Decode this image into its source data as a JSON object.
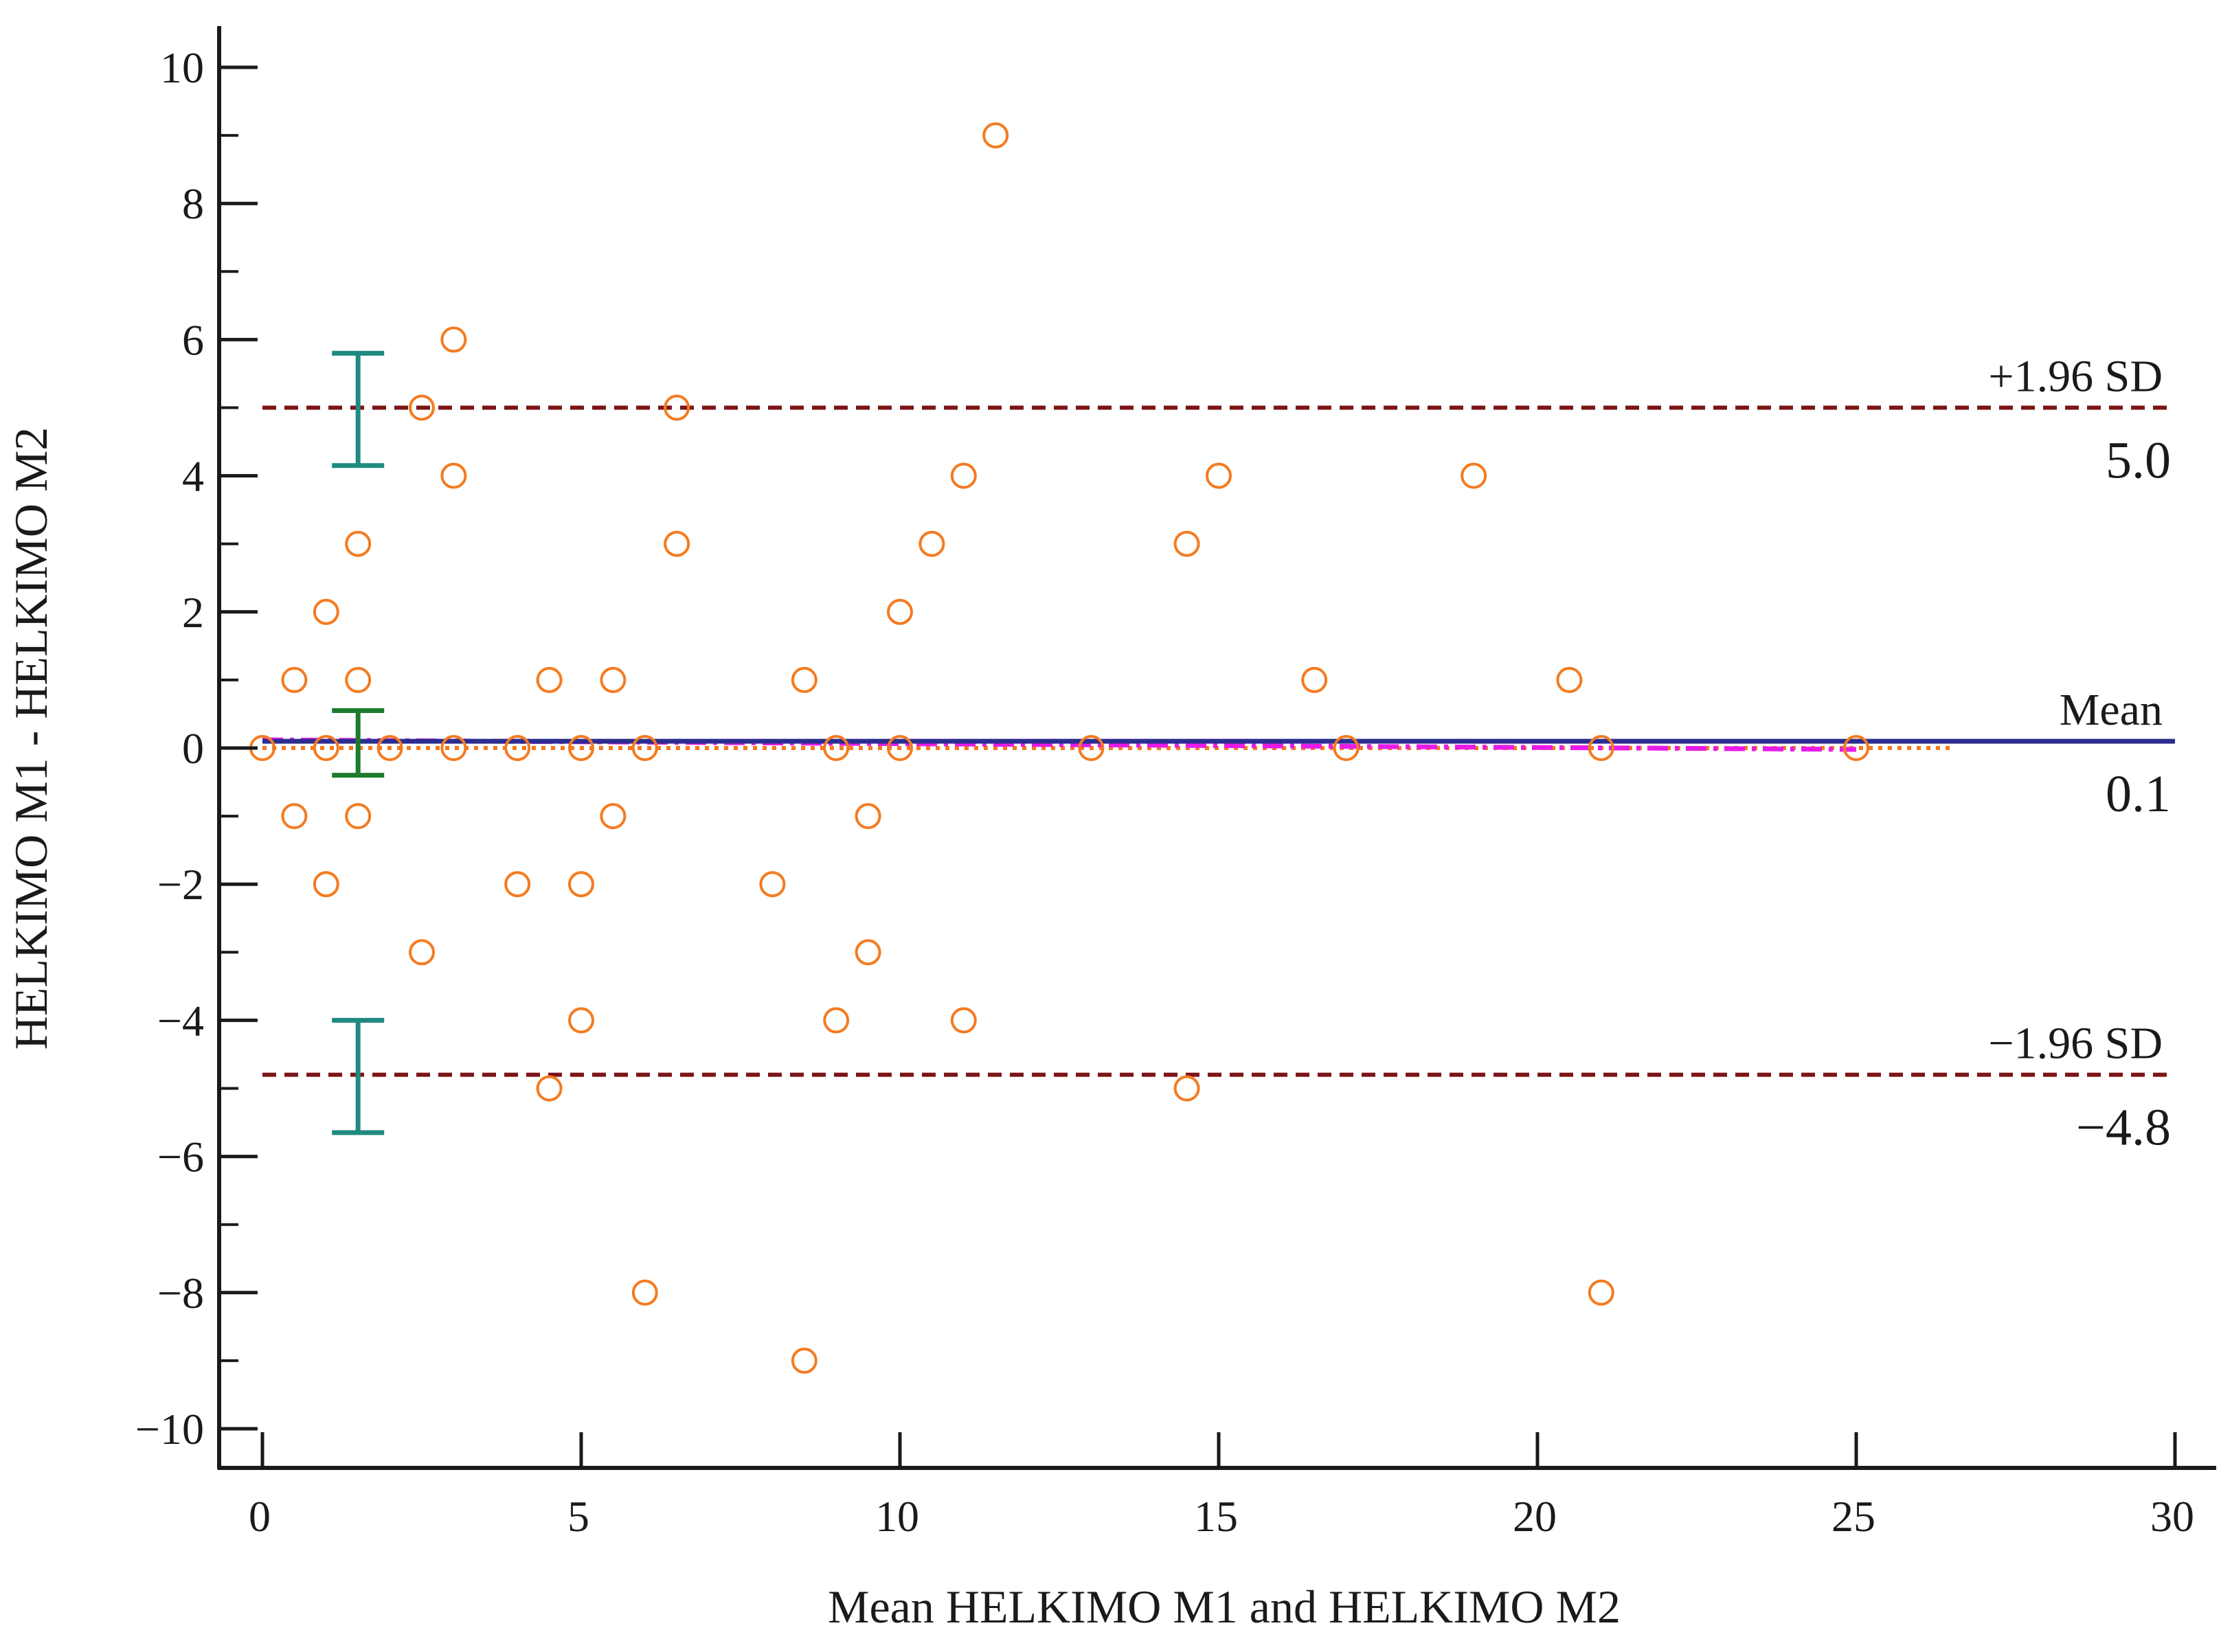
{
  "chart_data": {
    "type": "scatter",
    "subtype": "bland-altman",
    "xlabel": "Mean HELKIMO M1 and HELKIMO M2",
    "ylabel": "HELKIMO M1 - HELKIMO M2",
    "xlim": [
      0,
      30
    ],
    "ylim": [
      -10,
      10
    ],
    "x_ticks": [
      0,
      5,
      10,
      15,
      20,
      25,
      30
    ],
    "x_tick_labels": [
      "0",
      "5",
      "10",
      "15",
      "20",
      "25",
      "30"
    ],
    "y_ticks": [
      -10,
      -8,
      -6,
      -4,
      -2,
      0,
      2,
      4,
      6,
      8,
      10
    ],
    "y_tick_labels": [
      "−10",
      "−8",
      "−6",
      "−4",
      "−2",
      "0",
      "2",
      "4",
      "6",
      "8",
      "10"
    ],
    "y_minor_ticks": [
      -9,
      -7,
      -5,
      -3,
      -1,
      1,
      3,
      5,
      7,
      9
    ],
    "grid": false,
    "series": [
      {
        "name": "Differences",
        "marker": "open-circle",
        "color": "#F47B20",
        "points": [
          {
            "x": 0,
            "y": 0
          },
          {
            "x": 0.5,
            "y": 1
          },
          {
            "x": 0.5,
            "y": -1
          },
          {
            "x": 1,
            "y": 2
          },
          {
            "x": 1,
            "y": 0
          },
          {
            "x": 1,
            "y": -2
          },
          {
            "x": 1.5,
            "y": 3
          },
          {
            "x": 1.5,
            "y": 1
          },
          {
            "x": 1.5,
            "y": -1
          },
          {
            "x": 2,
            "y": 0
          },
          {
            "x": 2.5,
            "y": 5
          },
          {
            "x": 2.5,
            "y": -3
          },
          {
            "x": 3,
            "y": 6
          },
          {
            "x": 3,
            "y": 4
          },
          {
            "x": 3,
            "y": 0
          },
          {
            "x": 4,
            "y": 0
          },
          {
            "x": 4,
            "y": -2
          },
          {
            "x": 4.5,
            "y": 1
          },
          {
            "x": 4.5,
            "y": -5
          },
          {
            "x": 5,
            "y": 0
          },
          {
            "x": 5,
            "y": -2
          },
          {
            "x": 5,
            "y": -4
          },
          {
            "x": 5.5,
            "y": 1
          },
          {
            "x": 5.5,
            "y": -1
          },
          {
            "x": 6,
            "y": 0
          },
          {
            "x": 6,
            "y": -8
          },
          {
            "x": 6.5,
            "y": 5
          },
          {
            "x": 6.5,
            "y": 3
          },
          {
            "x": 8,
            "y": -2
          },
          {
            "x": 8.5,
            "y": 1
          },
          {
            "x": 8.5,
            "y": -9
          },
          {
            "x": 9,
            "y": 0
          },
          {
            "x": 9,
            "y": -4
          },
          {
            "x": 9.5,
            "y": -1
          },
          {
            "x": 9.5,
            "y": -3
          },
          {
            "x": 10,
            "y": 2
          },
          {
            "x": 10,
            "y": 0
          },
          {
            "x": 10.5,
            "y": 3
          },
          {
            "x": 11,
            "y": 4
          },
          {
            "x": 11,
            "y": -4
          },
          {
            "x": 11.5,
            "y": 9
          },
          {
            "x": 13,
            "y": 0
          },
          {
            "x": 14.5,
            "y": 3
          },
          {
            "x": 14.5,
            "y": -5
          },
          {
            "x": 15,
            "y": 4
          },
          {
            "x": 16.5,
            "y": 1
          },
          {
            "x": 17,
            "y": 0
          },
          {
            "x": 19,
            "y": 4
          },
          {
            "x": 20.5,
            "y": 1
          },
          {
            "x": 21,
            "y": 0
          },
          {
            "x": 21,
            "y": -8
          },
          {
            "x": 25,
            "y": 0
          }
        ]
      }
    ],
    "reference_lines": [
      {
        "name": "upper-loa",
        "label": "+1.96 SD",
        "value_label": "5.0",
        "y": 5.0,
        "color": "#7B1416",
        "style": "dashed"
      },
      {
        "name": "mean",
        "label": "Mean",
        "value_label": "0.1",
        "y": 0.1,
        "color": "#2B2D8F",
        "style": "solid"
      },
      {
        "name": "lower-loa",
        "label": "−1.96 SD",
        "value_label": "−4.8",
        "y": -4.8,
        "color": "#7B1416",
        "style": "dashed"
      }
    ],
    "zero_line": {
      "y": 0,
      "color": "#F47B20",
      "style": "dotted",
      "x_range": [
        0,
        26.5
      ]
    },
    "regression_line": {
      "color": "#E81BE8",
      "style": "dash-dot",
      "x_range": [
        0,
        25
      ],
      "y_start": 0.12,
      "y_end": -0.02
    },
    "confidence_intervals": [
      {
        "name": "upper-loa-ci",
        "x": 1.5,
        "y_low": 4.15,
        "y_high": 5.8,
        "color": "#1F8A80"
      },
      {
        "name": "mean-ci",
        "x": 1.5,
        "y_low": -0.4,
        "y_high": 0.55,
        "color": "#1E7B2E"
      },
      {
        "name": "lower-loa-ci",
        "x": 1.5,
        "y_low": -5.65,
        "y_high": -4.0,
        "color": "#1F8A80"
      }
    ]
  }
}
